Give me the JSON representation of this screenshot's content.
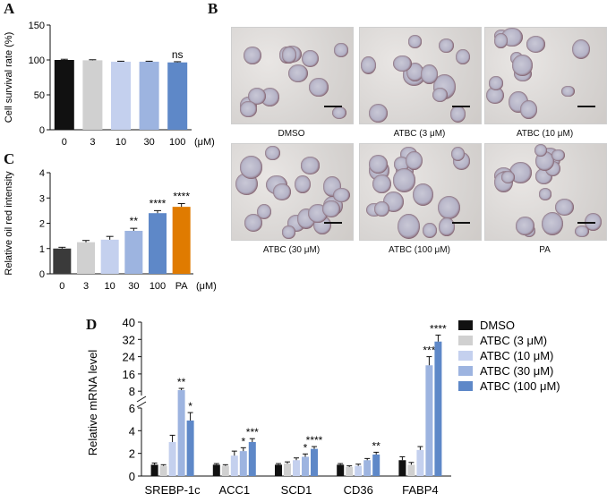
{
  "panels": {
    "A": "A",
    "B": "B",
    "C": "C",
    "D": "D"
  },
  "chart_data": [
    {
      "id": "A",
      "type": "bar",
      "ylabel": "Cell survival rate (%)",
      "xunit": "(μM)",
      "categories": [
        "0",
        "3",
        "10",
        "30",
        "100"
      ],
      "values": [
        100,
        99.5,
        97.5,
        97.5,
        96.5
      ],
      "errors": [
        1.0,
        0.8,
        0.7,
        0.7,
        1.0
      ],
      "colors": [
        "#111111",
        "#d0d0d0",
        "#c4d0ee",
        "#9db4e0",
        "#5e88c8"
      ],
      "annotations": [
        "",
        "",
        "",
        "",
        "ns"
      ],
      "yticks": [
        "0",
        "50",
        "100",
        "150"
      ],
      "ylim": [
        0,
        150
      ]
    },
    {
      "id": "C",
      "type": "bar",
      "ylabel": "Relative oil red intensity",
      "xunit": "(μM)",
      "categories": [
        "0",
        "3",
        "10",
        "30",
        "100",
        "PA"
      ],
      "values": [
        1.0,
        1.25,
        1.35,
        1.7,
        2.4,
        2.65
      ],
      "errors": [
        0.05,
        0.07,
        0.13,
        0.1,
        0.1,
        0.13
      ],
      "colors": [
        "#3a3a3a",
        "#d0d0d0",
        "#c4d0ee",
        "#9db4e0",
        "#5e88c8",
        "#e07b00"
      ],
      "annotations": [
        "",
        "",
        "",
        "**",
        "****",
        "****"
      ],
      "yticks": [
        "0",
        "1",
        "2",
        "3",
        "4"
      ],
      "ylim": [
        0,
        4
      ]
    },
    {
      "id": "D",
      "type": "bar",
      "ylabel": "Relative mRNA level",
      "categories": [
        "SREBP-1c",
        "ACC1",
        "SCD1",
        "CD36",
        "FABP4"
      ],
      "series": [
        {
          "name": "DMSO",
          "color": "#111111",
          "values": [
            1.0,
            1.0,
            1.0,
            1.0,
            1.4
          ],
          "errors": [
            0.15,
            0.1,
            0.1,
            0.1,
            0.3
          ],
          "annotations": [
            "",
            "",
            "",
            "",
            ""
          ]
        },
        {
          "name": "ATBC (3 μM)",
          "color": "#d0d0d0",
          "values": [
            0.9,
            0.9,
            1.1,
            0.8,
            1.0
          ],
          "errors": [
            0.1,
            0.1,
            0.15,
            0.1,
            0.2
          ],
          "annotations": [
            "",
            "",
            "",
            "",
            ""
          ]
        },
        {
          "name": "ATBC (10 μM)",
          "color": "#c4d0ee",
          "values": [
            3.0,
            1.8,
            1.4,
            0.9,
            2.3
          ],
          "errors": [
            0.6,
            0.4,
            0.2,
            0.15,
            0.3
          ],
          "annotations": [
            "",
            "",
            "",
            "",
            ""
          ]
        },
        {
          "name": "ATBC (30 μM)",
          "color": "#9db4e0",
          "values": [
            8.5,
            2.2,
            1.7,
            1.4,
            20
          ],
          "errors": [
            0.8,
            0.3,
            0.25,
            0.15,
            4
          ],
          "annotations": [
            "**",
            "*",
            "*",
            "",
            "***"
          ]
        },
        {
          "name": "ATBC (100 μM)",
          "color": "#5e88c8",
          "values": [
            4.9,
            3.0,
            2.4,
            1.9,
            31
          ],
          "errors": [
            0.7,
            0.3,
            0.2,
            0.2,
            3
          ],
          "annotations": [
            "*",
            "***",
            "****",
            "**",
            "****"
          ]
        }
      ],
      "yticks_lower": [
        "0",
        "2",
        "4",
        "6"
      ],
      "yticks_upper": [
        "8",
        "16",
        "24",
        "32",
        "40"
      ],
      "ylim_lower": [
        0,
        6
      ],
      "ylim_upper": [
        6,
        40
      ]
    }
  ],
  "micrographs": [
    {
      "label": "DMSO"
    },
    {
      "label": "ATBC (3 μM)"
    },
    {
      "label": "ATBC (10 μM)"
    },
    {
      "label": "ATBC (30 μM)"
    },
    {
      "label": "ATBC (100 μM)"
    },
    {
      "label": "PA"
    }
  ]
}
